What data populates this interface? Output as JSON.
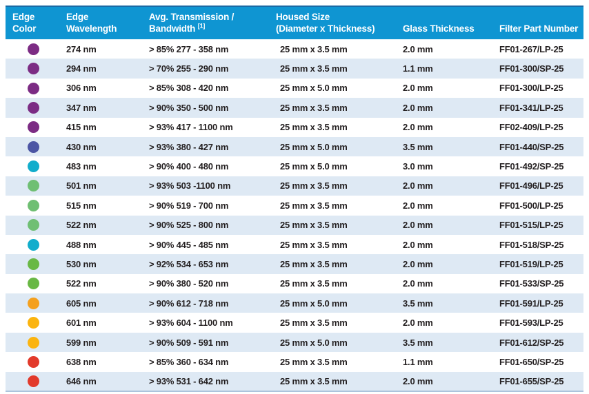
{
  "colors": {
    "header_bg": "#0F95D2",
    "header_top_border": "#1A6AA5",
    "header_text": "#FFFFFF",
    "row_alt_bg": "#DEE9F4",
    "body_text": "#231F20",
    "table_bottom_border": "#ACC4DD",
    "page_bg": "#FFFFFF"
  },
  "table": {
    "columns": [
      {
        "label_lines": [
          "Edge",
          "Color"
        ]
      },
      {
        "label_lines": [
          "Edge",
          "Wavelength"
        ]
      },
      {
        "label_lines": [
          "Avg. Transmission /",
          "Bandwidth"
        ],
        "superscript": "[1]"
      },
      {
        "label_lines": [
          "Housed Size",
          "(Diameter x Thickness)"
        ]
      },
      {
        "label_lines": [
          "Glass Thickness"
        ]
      },
      {
        "label_lines": [
          "Filter Part Number"
        ]
      }
    ],
    "rows": [
      {
        "edge_color_name": "purple",
        "edge_color_hex": "#7C2C84",
        "edge_wavelength": "274 nm",
        "transmission_bandwidth": "> 85% 277 - 358 nm",
        "housed_size": "25 mm x 3.5 mm",
        "glass_thickness": "2.0 mm",
        "part_number": "FF01-267/LP-25"
      },
      {
        "edge_color_name": "purple",
        "edge_color_hex": "#7C2C84",
        "edge_wavelength": "294 nm",
        "transmission_bandwidth": "> 70% 255 - 290 nm",
        "housed_size": "25 mm x 3.5 mm",
        "glass_thickness": "1.1 mm",
        "part_number": "FF01-300/SP-25"
      },
      {
        "edge_color_name": "purple",
        "edge_color_hex": "#7C2C84",
        "edge_wavelength": "306 nm",
        "transmission_bandwidth": "> 85% 308 - 420 nm",
        "housed_size": "25 mm x 5.0 mm",
        "glass_thickness": "2.0 mm",
        "part_number": "FF01-300/LP-25"
      },
      {
        "edge_color_name": "purple",
        "edge_color_hex": "#7C2C84",
        "edge_wavelength": "347 nm",
        "transmission_bandwidth": "> 90% 350 - 500 nm",
        "housed_size": "25 mm x 3.5 mm",
        "glass_thickness": "2.0 mm",
        "part_number": "FF01-341/LP-25"
      },
      {
        "edge_color_name": "purple",
        "edge_color_hex": "#7C2C84",
        "edge_wavelength": "415 nm",
        "transmission_bandwidth": "> 93% 417 - 1100 nm",
        "housed_size": "25 mm x 3.5 mm",
        "glass_thickness": "2.0 mm",
        "part_number": "FF02-409/LP-25"
      },
      {
        "edge_color_name": "blue-violet",
        "edge_color_hex": "#4C55A4",
        "edge_wavelength": "430 nm",
        "transmission_bandwidth": "> 93% 380 - 427 nm",
        "housed_size": "25 mm x 5.0 mm",
        "glass_thickness": "3.5 mm",
        "part_number": "FF01-440/SP-25"
      },
      {
        "edge_color_name": "cyan",
        "edge_color_hex": "#12ADCC",
        "edge_wavelength": "483 nm",
        "transmission_bandwidth": "> 90% 400 - 480 nm",
        "housed_size": "25 mm x 5.0 mm",
        "glass_thickness": "3.0 mm",
        "part_number": "FF01-492/SP-25"
      },
      {
        "edge_color_name": "light-green",
        "edge_color_hex": "#6FBF73",
        "edge_wavelength": "501 nm",
        "transmission_bandwidth": "> 93% 503 -1100 nm",
        "housed_size": "25 mm x 3.5 mm",
        "glass_thickness": "2.0 mm",
        "part_number": "FF01-496/LP-25"
      },
      {
        "edge_color_name": "light-green",
        "edge_color_hex": "#6FBF73",
        "edge_wavelength": "515 nm",
        "transmission_bandwidth": "> 90% 519 - 700 nm",
        "housed_size": "25 mm x 3.5 mm",
        "glass_thickness": "2.0 mm",
        "part_number": "FF01-500/LP-25"
      },
      {
        "edge_color_name": "light-green",
        "edge_color_hex": "#6FBF73",
        "edge_wavelength": "522 nm",
        "transmission_bandwidth": "> 90% 525 - 800 nm",
        "housed_size": "25 mm x 3.5 mm",
        "glass_thickness": "2.0 mm",
        "part_number": "FF01-515/LP-25"
      },
      {
        "edge_color_name": "cyan",
        "edge_color_hex": "#12ADCC",
        "edge_wavelength": "488 nm",
        "transmission_bandwidth": "> 90% 445 - 485 nm",
        "housed_size": "25 mm x 3.5 mm",
        "glass_thickness": "2.0 mm",
        "part_number": "FF01-518/SP-25"
      },
      {
        "edge_color_name": "green",
        "edge_color_hex": "#69B845",
        "edge_wavelength": "530 nm",
        "transmission_bandwidth": "> 92% 534 - 653 nm",
        "housed_size": "25 mm x 3.5 mm",
        "glass_thickness": "2.0 mm",
        "part_number": "FF01-519/LP-25"
      },
      {
        "edge_color_name": "green",
        "edge_color_hex": "#69B845",
        "edge_wavelength": "522 nm",
        "transmission_bandwidth": "> 90% 380 - 520 nm",
        "housed_size": "25 mm x 3.5 mm",
        "glass_thickness": "2.0 mm",
        "part_number": "FF01-533/SP-25"
      },
      {
        "edge_color_name": "orange",
        "edge_color_hex": "#F4A01D",
        "edge_wavelength": "605 nm",
        "transmission_bandwidth": "> 90% 612 - 718 nm",
        "housed_size": "25 mm x 5.0 mm",
        "glass_thickness": "3.5 mm",
        "part_number": "FF01-591/LP-25"
      },
      {
        "edge_color_name": "amber",
        "edge_color_hex": "#FBB40F",
        "edge_wavelength": "601 nm",
        "transmission_bandwidth": "> 93% 604 - 1100 nm",
        "housed_size": "25 mm x 3.5 mm",
        "glass_thickness": "2.0 mm",
        "part_number": "FF01-593/LP-25"
      },
      {
        "edge_color_name": "amber",
        "edge_color_hex": "#FBB40F",
        "edge_wavelength": "599 nm",
        "transmission_bandwidth": "> 90% 509 - 591 nm",
        "housed_size": "25 mm x 5.0 mm",
        "glass_thickness": "3.5 mm",
        "part_number": "FF01-612/SP-25"
      },
      {
        "edge_color_name": "red",
        "edge_color_hex": "#E23A2B",
        "edge_wavelength": "638 nm",
        "transmission_bandwidth": "> 85% 360 - 634 nm",
        "housed_size": "25 mm x 3.5 mm",
        "glass_thickness": "1.1 mm",
        "part_number": "FF01-650/SP-25"
      },
      {
        "edge_color_name": "red",
        "edge_color_hex": "#E23A2B",
        "edge_wavelength": "646 nm",
        "transmission_bandwidth": "> 93% 531 - 642 nm",
        "housed_size": "25 mm x 3.5 mm",
        "glass_thickness": "2.0 mm",
        "part_number": "FF01-655/SP-25"
      }
    ]
  }
}
